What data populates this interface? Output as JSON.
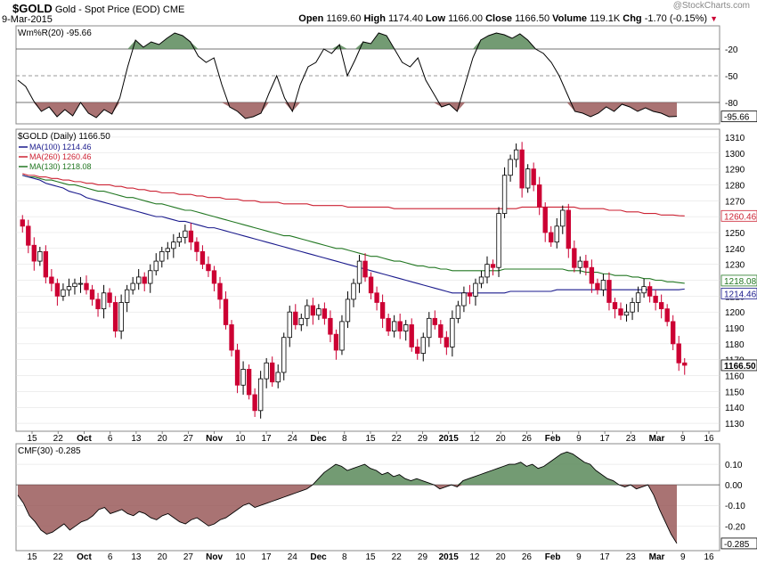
{
  "header": {
    "symbol": "$GOLD",
    "name": "Gold - Spot Price (EOD)",
    "exchange": "CME",
    "date": "9-Mar-2015",
    "watermark": "@StockCharts.com",
    "ohlc": {
      "open_label": "Open",
      "open": "1169.60",
      "high_label": "High",
      "high": "1174.40",
      "low_label": "Low",
      "low": "1166.00",
      "close_label": "Close",
      "close": "1166.50",
      "volume_label": "Volume",
      "volume": "119.1K",
      "chg_label": "Chg",
      "chg": "-1.70 (-0.15%)"
    }
  },
  "colors": {
    "up": "#000000",
    "down": "#cc0033",
    "ma100": "#1a1a8c",
    "ma260": "#cc2233",
    "ma130": "#227722",
    "pos_fill": "#5a8a5a",
    "neg_fill": "#9a5a5a",
    "tag_bg": "#ffffff",
    "grid": "#dddddd"
  },
  "chart_data": [
    {
      "type": "line",
      "title": "Wm%R(20) -95.66",
      "ylim": [
        -100,
        0
      ],
      "ticks": [
        "-20",
        "-50",
        "-80"
      ],
      "last_label": "-95.66",
      "y": [
        -55,
        -62,
        -78,
        -90,
        -85,
        -96,
        -88,
        -95,
        -80,
        -92,
        -97,
        -88,
        -93,
        -75,
        -40,
        -10,
        -18,
        -12,
        -15,
        -8,
        -2,
        -5,
        -12,
        -28,
        -35,
        -30,
        -60,
        -85,
        -90,
        -98,
        -96,
        -92,
        -70,
        -50,
        -75,
        -90,
        -60,
        -40,
        -35,
        -20,
        -25,
        -15,
        -50,
        -32,
        -12,
        -14,
        -2,
        -5,
        -20,
        -35,
        -40,
        -30,
        -55,
        -70,
        -85,
        -82,
        -90,
        -60,
        -30,
        -10,
        -5,
        -2,
        -4,
        -8,
        -3,
        -10,
        -20,
        -25,
        -35,
        -50,
        -70,
        -90,
        -92,
        -96,
        -92,
        -85,
        -90,
        -82,
        -85,
        -90,
        -86,
        -90,
        -92,
        -96,
        -95.66
      ]
    },
    {
      "type": "candlestick",
      "title": "$GOLD (Daily) 1166.50",
      "ylim": [
        1125,
        1315
      ],
      "y_ticks": [
        1130,
        1140,
        1150,
        1160,
        1170,
        1180,
        1190,
        1200,
        1210,
        1220,
        1230,
        1240,
        1250,
        1260,
        1270,
        1280,
        1290,
        1300,
        1310
      ],
      "x_ticks": [
        "15",
        "22",
        "Oct",
        "6",
        "13",
        "20",
        "27",
        "Nov",
        "10",
        "17",
        "24",
        "Dec",
        "8",
        "15",
        "22",
        "29",
        "2015",
        "12",
        "20",
        "26",
        "Feb",
        "9",
        "17",
        "23",
        "Mar",
        "9",
        "16"
      ],
      "legend": [
        {
          "name": "MA(100) 1214.46",
          "color": "#1a1a8c"
        },
        {
          "name": "MA(260) 1260.46",
          "color": "#cc2233"
        },
        {
          "name": "MA(130) 1218.08",
          "color": "#227722"
        }
      ],
      "last_price": "1166.50",
      "ma_tags": [
        "1260.46",
        "1218.08",
        "1214.46"
      ],
      "close": [
        1254,
        1242,
        1232,
        1238,
        1222,
        1218,
        1210,
        1214,
        1216,
        1218,
        1218,
        1214,
        1208,
        1202,
        1212,
        1206,
        1188,
        1206,
        1214,
        1218,
        1222,
        1218,
        1226,
        1232,
        1238,
        1240,
        1244,
        1247,
        1251,
        1244,
        1238,
        1230,
        1226,
        1218,
        1208,
        1192,
        1176,
        1154,
        1164,
        1148,
        1138,
        1158,
        1168,
        1156,
        1162,
        1184,
        1200,
        1192,
        1196,
        1204,
        1198,
        1202,
        1196,
        1186,
        1176,
        1194,
        1208,
        1218,
        1232,
        1222,
        1212,
        1206,
        1196,
        1188,
        1194,
        1188,
        1192,
        1178,
        1174,
        1184,
        1196,
        1192,
        1184,
        1178,
        1196,
        1204,
        1212,
        1210,
        1218,
        1222,
        1230,
        1228,
        1262,
        1286,
        1296,
        1302,
        1278,
        1290,
        1280,
        1266,
        1250,
        1244,
        1254,
        1264,
        1240,
        1228,
        1232,
        1228,
        1218,
        1214,
        1220,
        1206,
        1202,
        1198,
        1200,
        1206,
        1212,
        1216,
        1210,
        1206,
        1202,
        1194,
        1180,
        1168,
        1166.5
      ],
      "ma100": [
        1286,
        1285,
        1284,
        1283,
        1281,
        1280,
        1279,
        1278,
        1276,
        1275,
        1274,
        1272,
        1271,
        1270,
        1269,
        1268,
        1267,
        1266,
        1265,
        1264,
        1263,
        1262,
        1261,
        1260,
        1260,
        1259,
        1258,
        1257,
        1257,
        1256,
        1255,
        1254,
        1253,
        1253,
        1252,
        1251,
        1250,
        1249,
        1248,
        1247,
        1246,
        1245,
        1244,
        1243,
        1242,
        1241,
        1240,
        1239,
        1238,
        1237,
        1236,
        1235,
        1234,
        1233,
        1232,
        1231,
        1230,
        1229,
        1228,
        1227,
        1226,
        1225,
        1224,
        1223,
        1222,
        1221,
        1220,
        1219,
        1218,
        1217,
        1216,
        1215,
        1214,
        1213,
        1212,
        1212,
        1212,
        1212,
        1212,
        1212,
        1212,
        1212,
        1212,
        1212,
        1213,
        1213,
        1213,
        1213,
        1213,
        1213,
        1213,
        1213,
        1214,
        1214,
        1214,
        1214,
        1214,
        1214,
        1214,
        1214,
        1214,
        1214,
        1214,
        1214,
        1214,
        1214,
        1214,
        1214,
        1214,
        1214,
        1214,
        1214,
        1214,
        1214,
        1214.46
      ],
      "ma260": [
        1287,
        1286,
        1286,
        1285,
        1285,
        1284,
        1284,
        1283,
        1283,
        1282,
        1282,
        1281,
        1281,
        1280,
        1280,
        1280,
        1279,
        1279,
        1278,
        1278,
        1277,
        1277,
        1276,
        1276,
        1275,
        1275,
        1275,
        1274,
        1274,
        1274,
        1273,
        1273,
        1272,
        1272,
        1272,
        1271,
        1271,
        1271,
        1270,
        1270,
        1270,
        1269,
        1269,
        1269,
        1269,
        1268,
        1268,
        1268,
        1268,
        1268,
        1267,
        1267,
        1267,
        1267,
        1267,
        1267,
        1266,
        1266,
        1266,
        1266,
        1266,
        1266,
        1266,
        1266,
        1265,
        1265,
        1265,
        1265,
        1265,
        1265,
        1265,
        1265,
        1265,
        1265,
        1265,
        1265,
        1265,
        1265,
        1265,
        1265,
        1265,
        1265,
        1265,
        1265,
        1265,
        1265,
        1266,
        1266,
        1266,
        1266,
        1266,
        1266,
        1266,
        1266,
        1266,
        1266,
        1265,
        1265,
        1265,
        1265,
        1265,
        1264,
        1264,
        1264,
        1263,
        1263,
        1263,
        1262,
        1262,
        1262,
        1261,
        1261,
        1261,
        1260.6,
        1260.46
      ],
      "ma130": [
        1286,
        1285,
        1285,
        1284,
        1283,
        1283,
        1282,
        1281,
        1280,
        1280,
        1279,
        1278,
        1277,
        1276,
        1276,
        1275,
        1274,
        1273,
        1272,
        1272,
        1271,
        1270,
        1269,
        1268,
        1268,
        1267,
        1266,
        1265,
        1264,
        1264,
        1263,
        1262,
        1261,
        1260,
        1259,
        1258,
        1257,
        1256,
        1255,
        1254,
        1253,
        1252,
        1251,
        1250,
        1249,
        1248,
        1248,
        1247,
        1246,
        1245,
        1244,
        1243,
        1242,
        1241,
        1240,
        1240,
        1239,
        1238,
        1237,
        1236,
        1235,
        1235,
        1234,
        1233,
        1232,
        1232,
        1231,
        1230,
        1229,
        1229,
        1228,
        1228,
        1227,
        1227,
        1226,
        1226,
        1226,
        1226,
        1226,
        1226,
        1226,
        1226,
        1226,
        1227,
        1227,
        1227,
        1227,
        1227,
        1227,
        1227,
        1227,
        1227,
        1227,
        1227,
        1226,
        1226,
        1226,
        1225,
        1225,
        1225,
        1224,
        1224,
        1223,
        1223,
        1223,
        1222,
        1222,
        1221,
        1221,
        1220,
        1220,
        1219,
        1219,
        1218.5,
        1218.08
      ]
    },
    {
      "type": "area",
      "title": "CMF(30) -0.285",
      "ylim": [
        -0.32,
        0.2
      ],
      "ticks": [
        "0.10",
        "0.00",
        "-0.10",
        "-0.20"
      ],
      "last_label": "-0.285",
      "y": [
        -0.05,
        -0.09,
        -0.15,
        -0.18,
        -0.22,
        -0.24,
        -0.23,
        -0.21,
        -0.19,
        -0.22,
        -0.2,
        -0.18,
        -0.17,
        -0.15,
        -0.12,
        -0.11,
        -0.14,
        -0.13,
        -0.12,
        -0.14,
        -0.15,
        -0.13,
        -0.14,
        -0.16,
        -0.17,
        -0.15,
        -0.14,
        -0.16,
        -0.18,
        -0.19,
        -0.17,
        -0.16,
        -0.18,
        -0.2,
        -0.19,
        -0.17,
        -0.16,
        -0.14,
        -0.12,
        -0.1,
        -0.09,
        -0.11,
        -0.1,
        -0.09,
        -0.08,
        -0.07,
        -0.06,
        -0.05,
        -0.04,
        -0.03,
        -0.02,
        0.0,
        0.03,
        0.06,
        0.08,
        0.1,
        0.09,
        0.07,
        0.08,
        0.09,
        0.1,
        0.08,
        0.07,
        0.05,
        0.06,
        0.04,
        0.05,
        0.03,
        0.02,
        0.03,
        0.02,
        0.01,
        0.0,
        -0.02,
        -0.01,
        0.0,
        -0.01,
        0.02,
        0.03,
        0.04,
        0.05,
        0.06,
        0.07,
        0.08,
        0.09,
        0.1,
        0.1,
        0.11,
        0.09,
        0.1,
        0.08,
        0.09,
        0.11,
        0.13,
        0.15,
        0.16,
        0.15,
        0.13,
        0.11,
        0.1,
        0.07,
        0.05,
        0.03,
        0.02,
        0.0,
        -0.01,
        0.0,
        -0.02,
        -0.01,
        0.0,
        -0.05,
        -0.12,
        -0.18,
        -0.24,
        -0.285
      ]
    }
  ]
}
